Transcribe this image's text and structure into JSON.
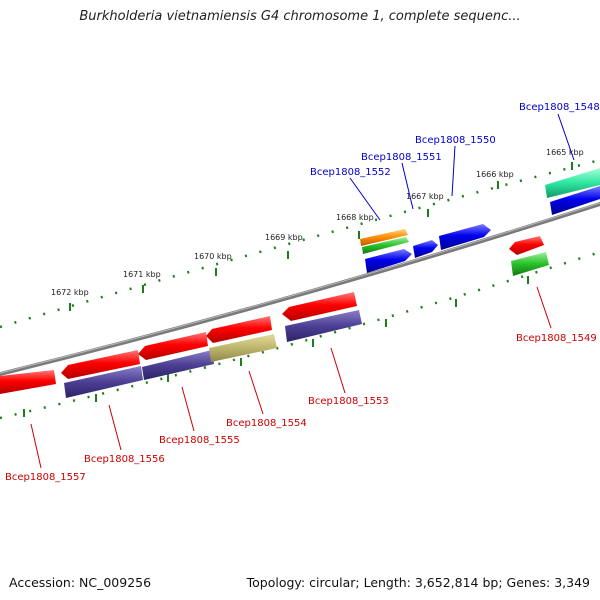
{
  "title": "Burkholderia vietnamiensis G4 chromosome 1, complete sequenc...",
  "footer": {
    "accession": "Accession: NC_009256",
    "summary": "Topology: circular; Length: 3,652,814 bp; Genes: 3,349"
  },
  "colors": {
    "backbone": "#888888",
    "tick": "#1b7f1b",
    "label_forward": "#0000cc",
    "label_reverse": "#cc0000",
    "leader_forward": "#0000cc",
    "leader_reverse": "#cc0000"
  },
  "tick_labels": [
    "1665 kbp",
    "1666 kbp",
    "1667 kbp",
    "1668 kbp",
    "1669 kbp",
    "1670 kbp",
    "1671 kbp",
    "1672 kbp"
  ],
  "gene_labels": {
    "forward": [
      "Bcep1808_1548",
      "Bcep1808_1550",
      "Bcep1808_1551",
      "Bcep1808_1552"
    ],
    "reverse": [
      "Bcep1808_1549",
      "Bcep1808_1553",
      "Bcep1808_1554",
      "Bcep1808_1555",
      "Bcep1808_1556",
      "Bcep1808_1557"
    ]
  }
}
